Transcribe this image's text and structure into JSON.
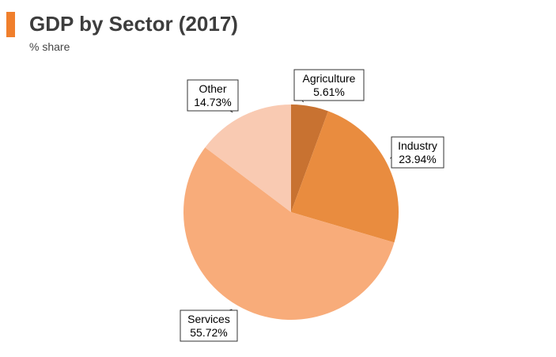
{
  "header": {
    "title": "GDP by Sector (2017)",
    "subtitle": "% share",
    "accent_color": "#f07f2c"
  },
  "chart_data": {
    "type": "pie",
    "title": "GDP by Sector (2017)",
    "subtitle": "% share",
    "slices": [
      {
        "label": "Agriculture",
        "value": 5.61,
        "value_label": "5.61%",
        "color": "#c87231"
      },
      {
        "label": "Industry",
        "value": 23.94,
        "value_label": "23.94%",
        "color": "#e98c3f"
      },
      {
        "label": "Services",
        "value": 55.72,
        "value_label": "55.72%",
        "color": "#f8ac7a"
      },
      {
        "label": "Other",
        "value": 14.73,
        "value_label": "14.73%",
        "color": "#f9cab2"
      }
    ],
    "start_angle": "12 o'clock",
    "direction": "clockwise",
    "legend": "none"
  }
}
